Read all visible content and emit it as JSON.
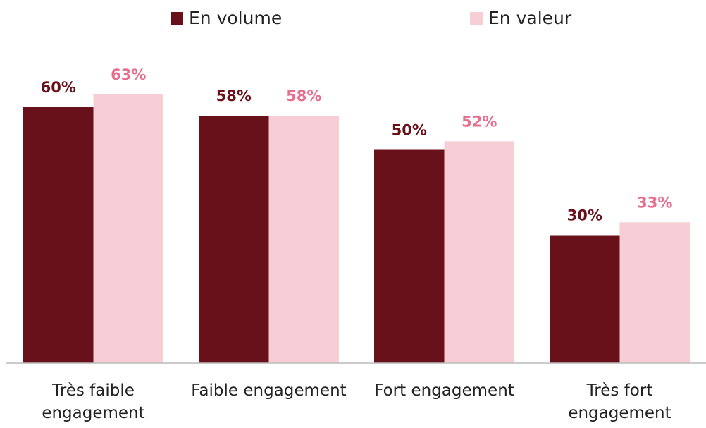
{
  "chart_data": {
    "type": "bar",
    "categories": [
      "Très faible engagement",
      "Faible engagement",
      "Fort engagement",
      "Très fort engagement"
    ],
    "series": [
      {
        "name": "En volume",
        "color": "#68111a",
        "label_color": "#68111a",
        "values": [
          60,
          58,
          50,
          30
        ],
        "value_labels": [
          "60%",
          "58%",
          "50%",
          "30%"
        ]
      },
      {
        "name": "En valeur",
        "color": "#f7cdd6",
        "label_color": "#e66f8e",
        "values": [
          63,
          58,
          52,
          33
        ],
        "value_labels": [
          "63%",
          "58%",
          "52%",
          "33%"
        ]
      }
    ],
    "legend": "top"
  }
}
